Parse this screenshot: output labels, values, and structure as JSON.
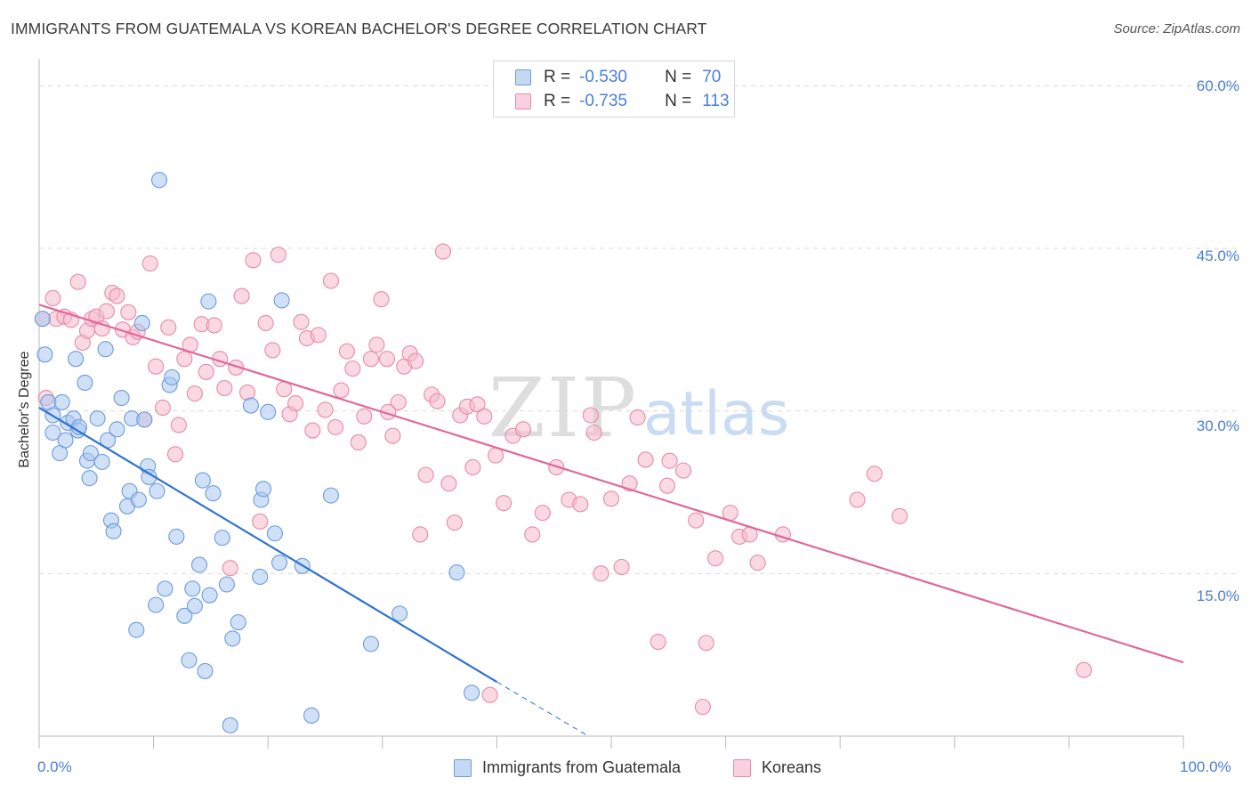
{
  "header": {
    "title": "IMMIGRANTS FROM GUATEMALA VS KOREAN BACHELOR'S DEGREE CORRELATION CHART",
    "source": "Source: ZipAtlas.com"
  },
  "legend": {
    "series1": {
      "r_label": "R =",
      "r_value": "-0.530",
      "n_label": "N =",
      "n_value": "70"
    },
    "series2": {
      "r_label": "R =",
      "r_value": "-0.735",
      "n_label": "N =",
      "n_value": "113"
    }
  },
  "watermark": {
    "zip": "ZIP",
    "atlas": "atlas"
  },
  "colors": {
    "blue_fill": "#a9c6ee",
    "blue_stroke": "#6d9bdc",
    "blue_line": "#2f73d2",
    "pink_fill": "#f6b9cc",
    "pink_stroke": "#e88aa8",
    "pink_line": "#e0689a",
    "tick_text": "#4a7fd4",
    "grid": "#d9d9d9"
  },
  "chart_data": {
    "type": "scatter",
    "title": "IMMIGRANTS FROM GUATEMALA VS KOREAN BACHELOR'S DEGREE CORRELATION CHART",
    "xlabel": "",
    "ylabel": "Bachelor's Degree",
    "xlim": [
      0,
      100
    ],
    "ylim": [
      0,
      61.5
    ],
    "x_tick_labels": [
      "0.0%",
      "100.0%"
    ],
    "y_ticks": [
      15,
      30,
      45,
      60
    ],
    "y_tick_labels": [
      "15.0%",
      "30.0%",
      "45.0%",
      "60.0%"
    ],
    "grid": true,
    "legend_position": "top-center",
    "series": [
      {
        "name": "Immigrants from Guatemala",
        "color": "#a9c6ee",
        "trend": {
          "x": [
            0,
            40
          ],
          "y": [
            30.3,
            5.0
          ],
          "dashed_to": [
            48,
            0
          ]
        },
        "points": [
          [
            0.3,
            38.5
          ],
          [
            0.5,
            35.2
          ],
          [
            0.8,
            30.8
          ],
          [
            1.2,
            29.6
          ],
          [
            1.2,
            28.0
          ],
          [
            1.8,
            26.1
          ],
          [
            2.0,
            30.8
          ],
          [
            2.3,
            27.3
          ],
          [
            2.5,
            28.9
          ],
          [
            3.0,
            29.3
          ],
          [
            3.2,
            34.8
          ],
          [
            3.4,
            28.2
          ],
          [
            3.5,
            28.5
          ],
          [
            4.0,
            32.6
          ],
          [
            4.2,
            25.4
          ],
          [
            4.4,
            23.8
          ],
          [
            4.5,
            26.1
          ],
          [
            5.1,
            29.3
          ],
          [
            5.5,
            25.3
          ],
          [
            5.8,
            35.7
          ],
          [
            6.0,
            27.3
          ],
          [
            6.3,
            19.9
          ],
          [
            6.5,
            18.9
          ],
          [
            6.8,
            28.3
          ],
          [
            7.2,
            31.2
          ],
          [
            7.7,
            21.2
          ],
          [
            7.9,
            22.6
          ],
          [
            8.1,
            29.3
          ],
          [
            8.5,
            9.8
          ],
          [
            8.7,
            21.8
          ],
          [
            9.0,
            38.1
          ],
          [
            9.2,
            29.2
          ],
          [
            9.5,
            24.9
          ],
          [
            9.6,
            23.9
          ],
          [
            10.2,
            12.1
          ],
          [
            10.3,
            22.6
          ],
          [
            10.5,
            51.3
          ],
          [
            11.0,
            13.6
          ],
          [
            11.4,
            32.4
          ],
          [
            11.6,
            33.1
          ],
          [
            12.0,
            18.4
          ],
          [
            12.7,
            11.1
          ],
          [
            13.1,
            7.0
          ],
          [
            13.4,
            13.6
          ],
          [
            13.6,
            12.0
          ],
          [
            14.0,
            15.8
          ],
          [
            14.3,
            23.6
          ],
          [
            14.5,
            6.0
          ],
          [
            14.8,
            40.1
          ],
          [
            14.9,
            13.0
          ],
          [
            15.2,
            22.4
          ],
          [
            16.0,
            18.3
          ],
          [
            16.4,
            14.0
          ],
          [
            16.7,
            1.0
          ],
          [
            16.9,
            9.0
          ],
          [
            17.4,
            10.5
          ],
          [
            18.5,
            30.5
          ],
          [
            19.3,
            14.7
          ],
          [
            19.4,
            21.8
          ],
          [
            19.6,
            22.8
          ],
          [
            20.0,
            29.9
          ],
          [
            20.6,
            18.7
          ],
          [
            21.0,
            16.0
          ],
          [
            21.2,
            40.2
          ],
          [
            23.0,
            15.7
          ],
          [
            23.8,
            1.9
          ],
          [
            25.5,
            22.2
          ],
          [
            29.0,
            8.5
          ],
          [
            31.5,
            11.3
          ],
          [
            36.5,
            15.1
          ],
          [
            37.8,
            4.0
          ]
        ]
      },
      {
        "name": "Koreans",
        "color": "#f6b9cc",
        "trend": {
          "x": [
            0,
            100
          ],
          "y": [
            39.8,
            6.8
          ]
        },
        "points": [
          [
            0.3,
            38.5
          ],
          [
            0.6,
            31.2
          ],
          [
            1.2,
            40.4
          ],
          [
            1.5,
            38.5
          ],
          [
            2.2,
            38.7
          ],
          [
            2.8,
            38.4
          ],
          [
            3.4,
            41.9
          ],
          [
            3.8,
            36.3
          ],
          [
            4.2,
            37.4
          ],
          [
            4.6,
            38.5
          ],
          [
            5.0,
            38.7
          ],
          [
            5.5,
            37.6
          ],
          [
            5.9,
            39.2
          ],
          [
            6.4,
            40.9
          ],
          [
            6.8,
            40.6
          ],
          [
            7.3,
            37.5
          ],
          [
            7.8,
            39.1
          ],
          [
            8.2,
            36.8
          ],
          [
            8.6,
            37.3
          ],
          [
            9.2,
            29.2
          ],
          [
            9.7,
            43.6
          ],
          [
            10.2,
            34.1
          ],
          [
            10.8,
            30.3
          ],
          [
            11.3,
            37.7
          ],
          [
            11.9,
            26.0
          ],
          [
            12.2,
            28.7
          ],
          [
            12.7,
            34.8
          ],
          [
            13.2,
            36.1
          ],
          [
            13.6,
            31.6
          ],
          [
            14.2,
            38.0
          ],
          [
            14.6,
            33.6
          ],
          [
            15.3,
            37.9
          ],
          [
            15.8,
            34.8
          ],
          [
            16.2,
            32.1
          ],
          [
            16.7,
            15.5
          ],
          [
            17.2,
            34.0
          ],
          [
            17.7,
            40.6
          ],
          [
            18.2,
            31.7
          ],
          [
            18.7,
            43.9
          ],
          [
            19.3,
            19.8
          ],
          [
            19.8,
            38.1
          ],
          [
            20.4,
            35.6
          ],
          [
            20.9,
            44.4
          ],
          [
            21.4,
            32.0
          ],
          [
            21.9,
            29.7
          ],
          [
            22.4,
            30.7
          ],
          [
            22.9,
            38.2
          ],
          [
            23.4,
            36.7
          ],
          [
            23.9,
            28.2
          ],
          [
            24.4,
            37.0
          ],
          [
            25.0,
            30.1
          ],
          [
            25.5,
            42.0
          ],
          [
            25.9,
            28.5
          ],
          [
            26.4,
            31.9
          ],
          [
            26.9,
            35.5
          ],
          [
            27.4,
            33.9
          ],
          [
            27.9,
            27.1
          ],
          [
            28.4,
            29.5
          ],
          [
            29.0,
            34.8
          ],
          [
            29.5,
            36.1
          ],
          [
            29.9,
            40.3
          ],
          [
            30.4,
            34.8
          ],
          [
            30.9,
            27.7
          ],
          [
            31.4,
            30.8
          ],
          [
            31.9,
            34.1
          ],
          [
            32.4,
            35.3
          ],
          [
            32.9,
            34.6
          ],
          [
            33.3,
            18.6
          ],
          [
            33.8,
            24.1
          ],
          [
            34.3,
            31.5
          ],
          [
            34.8,
            30.9
          ],
          [
            35.3,
            44.7
          ],
          [
            35.8,
            23.3
          ],
          [
            36.3,
            19.7
          ],
          [
            36.8,
            29.6
          ],
          [
            37.4,
            30.4
          ],
          [
            37.9,
            24.8
          ],
          [
            38.3,
            30.6
          ],
          [
            38.9,
            29.5
          ],
          [
            39.4,
            3.8
          ],
          [
            39.9,
            25.9
          ],
          [
            40.6,
            21.5
          ],
          [
            41.4,
            27.7
          ],
          [
            42.3,
            28.3
          ],
          [
            43.1,
            18.6
          ],
          [
            44.0,
            20.6
          ],
          [
            45.2,
            24.8
          ],
          [
            46.3,
            21.8
          ],
          [
            47.3,
            21.4
          ],
          [
            48.2,
            29.6
          ],
          [
            48.5,
            28.0
          ],
          [
            49.1,
            15.0
          ],
          [
            50.0,
            21.9
          ],
          [
            50.9,
            15.6
          ],
          [
            51.6,
            23.3
          ],
          [
            52.3,
            29.4
          ],
          [
            53.0,
            25.5
          ],
          [
            54.1,
            8.7
          ],
          [
            54.9,
            23.1
          ],
          [
            55.1,
            25.4
          ],
          [
            56.3,
            24.5
          ],
          [
            57.4,
            19.9
          ],
          [
            58.0,
            2.7
          ],
          [
            58.3,
            8.6
          ],
          [
            59.1,
            16.4
          ],
          [
            60.4,
            20.6
          ],
          [
            61.2,
            18.4
          ],
          [
            62.1,
            18.6
          ],
          [
            62.8,
            16.0
          ],
          [
            65.0,
            18.6
          ],
          [
            71.5,
            21.8
          ],
          [
            73.0,
            24.2
          ],
          [
            75.2,
            20.3
          ],
          [
            91.3,
            6.1
          ],
          [
            30.5,
            29.9
          ]
        ]
      }
    ]
  },
  "bottom_legend": {
    "series1": "Immigrants from Guatemala",
    "series2": "Koreans"
  }
}
